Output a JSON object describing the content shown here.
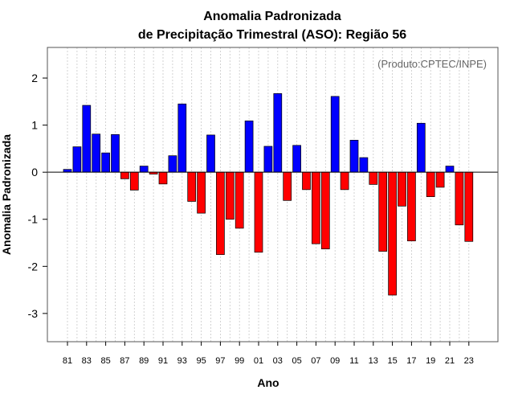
{
  "chart_data": {
    "type": "bar",
    "title": "Anomalia Padronizada",
    "subtitle": "de Precipitação Trimestral (ASO): Região 56",
    "xlabel": "Ano",
    "ylabel": "Anomalia Padronizada",
    "annotation": "(Produto:CPTEC/INPE)",
    "ylim": [
      -3.6,
      2.65
    ],
    "yticks": [
      -3,
      -2,
      -1,
      0,
      1,
      2
    ],
    "grid": true,
    "categories": [
      "81",
      "82",
      "83",
      "84",
      "85",
      "86",
      "87",
      "88",
      "89",
      "90",
      "91",
      "92",
      "93",
      "94",
      "95",
      "96",
      "97",
      "98",
      "99",
      "00",
      "01",
      "02",
      "03",
      "04",
      "05",
      "06",
      "07",
      "08",
      "09",
      "10",
      "11",
      "12",
      "13",
      "14",
      "15",
      "16",
      "17",
      "18",
      "19",
      "20",
      "21",
      "22",
      "23"
    ],
    "xtick_labels": [
      "81",
      "83",
      "85",
      "87",
      "89",
      "91",
      "93",
      "95",
      "97",
      "99",
      "01",
      "03",
      "05",
      "07",
      "09",
      "11",
      "13",
      "15",
      "17",
      "19",
      "21",
      "23"
    ],
    "values": [
      0.06,
      0.54,
      1.42,
      0.81,
      0.41,
      0.8,
      -0.14,
      -0.38,
      0.13,
      -0.04,
      -0.25,
      0.35,
      1.45,
      -0.62,
      -0.87,
      0.79,
      -1.75,
      -1.0,
      -1.19,
      1.09,
      -1.7,
      0.55,
      1.67,
      -0.6,
      0.57,
      -0.37,
      -1.52,
      -1.63,
      1.61,
      -0.37,
      0.68,
      0.31,
      -0.26,
      -1.68,
      -2.61,
      -0.72,
      -1.46,
      1.04,
      -0.52,
      -0.32,
      0.13,
      -1.12,
      -1.47
    ],
    "colors": {
      "positive": "#0000ff",
      "negative": "#ff0000",
      "outline": "#000000"
    }
  }
}
